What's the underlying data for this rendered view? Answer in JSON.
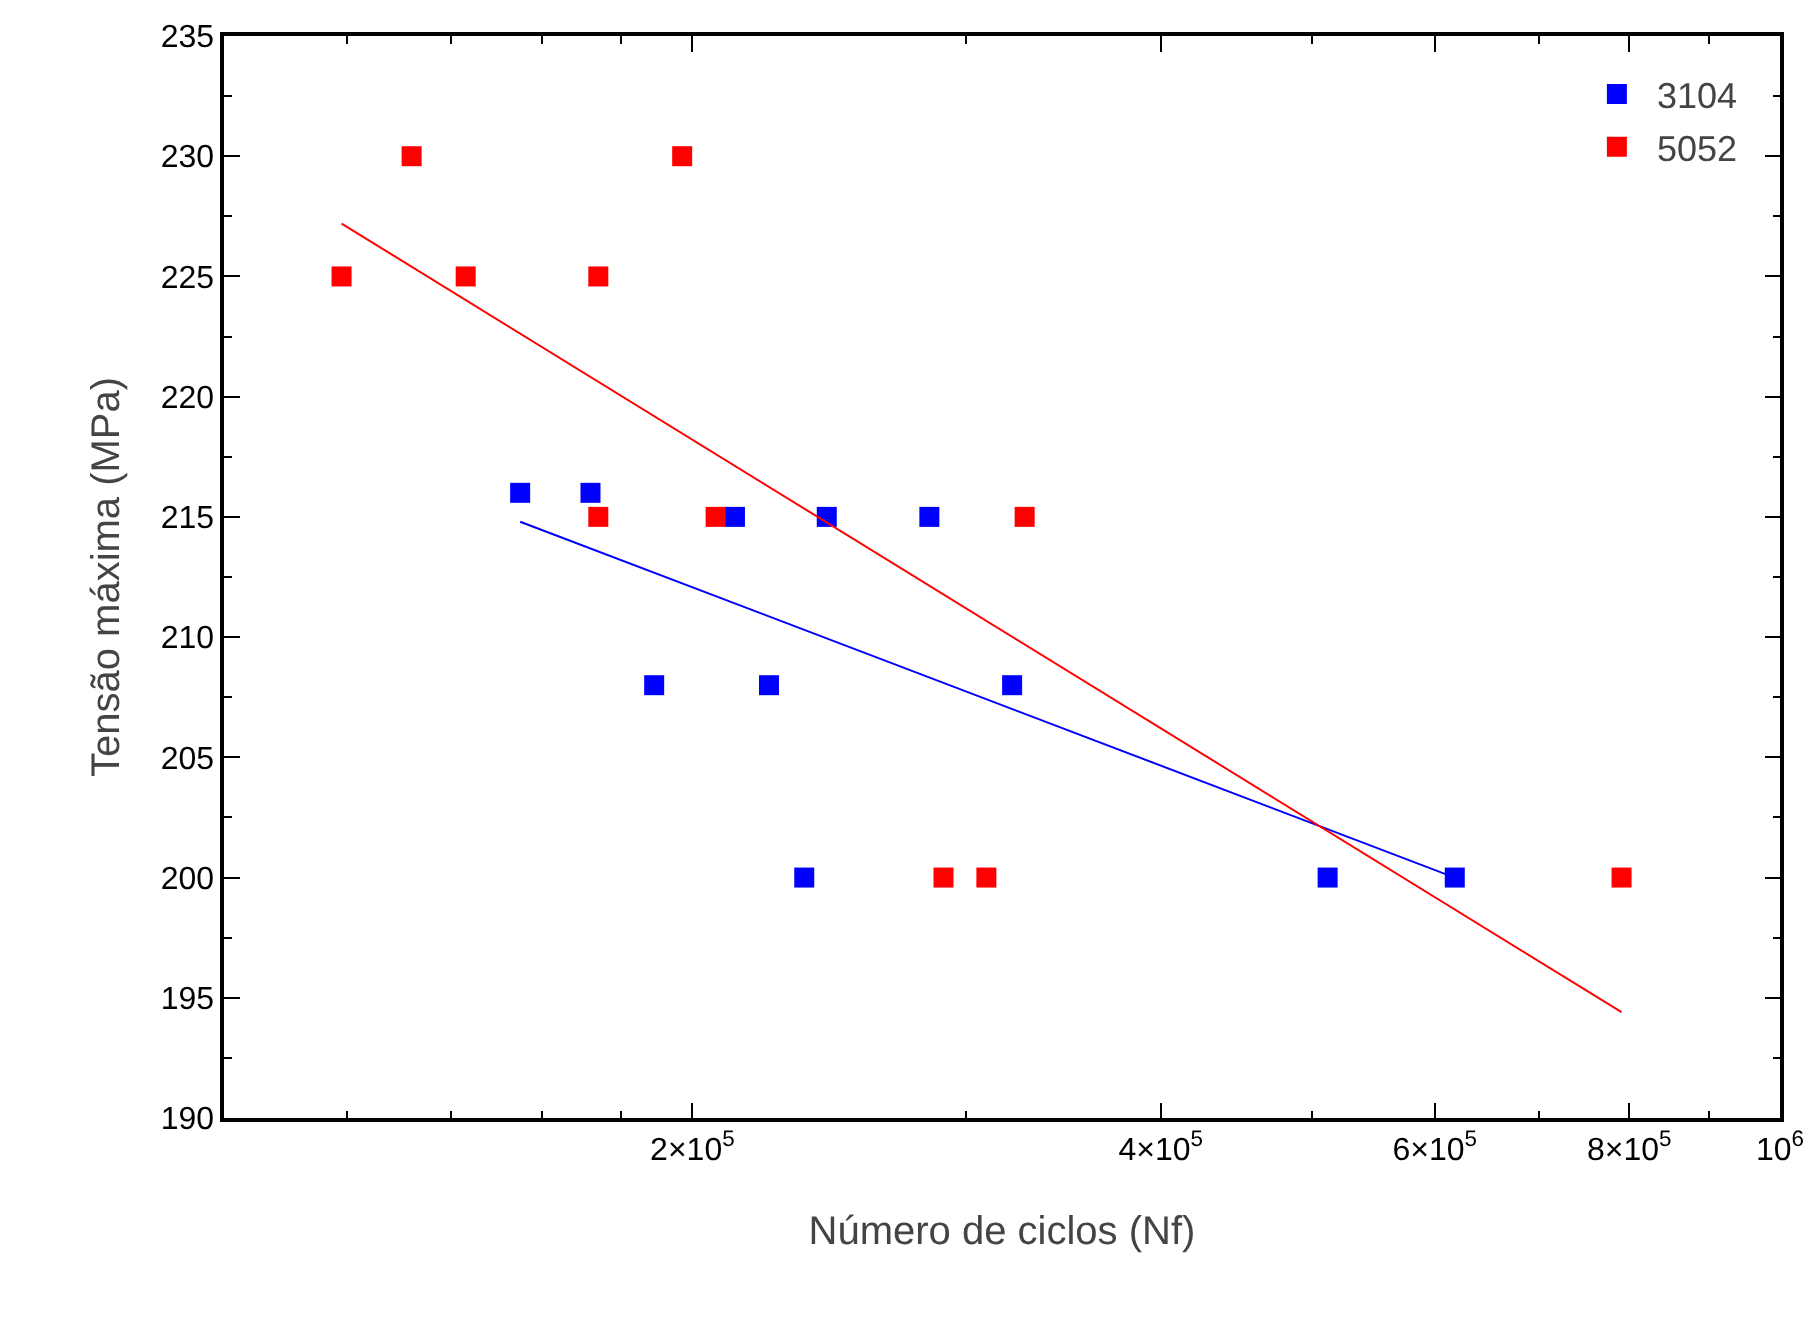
{
  "chart_data": {
    "type": "scatter",
    "xlabel": "Número de ciclos (Nf)",
    "ylabel": "Tensão máxima (MPa)",
    "log": "x",
    "xlim": [
      100000,
      1000000
    ],
    "xticks": [
      {
        "value": 200000,
        "label": "2×10$^{5}$"
      },
      {
        "value": 400000,
        "label": "4×10$^{5}$"
      },
      {
        "value": 600000,
        "label": "6×10$^{5}$"
      },
      {
        "value": 800000,
        "label": "8×10$^{5}$"
      },
      {
        "value": 1000000,
        "label": "10$^{6}$"
      }
    ],
    "ylim": [
      190,
      235
    ],
    "yticks": [
      190,
      195,
      200,
      205,
      210,
      215,
      220,
      225,
      230,
      235
    ],
    "grid": false,
    "legend": "top right",
    "marker": "square",
    "series": [
      {
        "name": "3104",
        "color": "#0000ff",
        "x": [
          155000,
          172000,
          189000,
          213000,
          224000,
          236000,
          244000,
          284000,
          321000,
          512000,
          618000
        ],
        "values": [
          216,
          216,
          208,
          215,
          208,
          200,
          215,
          215,
          208,
          200,
          200
        ]
      },
      {
        "name": "5052",
        "color": "#ff0000",
        "x": [
          119000,
          132000,
          143000,
          174000,
          174000,
          197000,
          207000,
          290000,
          309000,
          327000,
          791000
        ],
        "values": [
          225,
          230,
          225,
          215,
          225,
          230,
          215,
          200,
          200,
          215,
          200
        ]
      },
      {
        "type": "line",
        "marker": "none",
        "color": "#0000ff",
        "x": [
          155000,
          618000
        ],
        "values": [
          214.8,
          200.0
        ]
      },
      {
        "type": "line",
        "marker": "none",
        "color": "#ff0000",
        "x": [
          119000,
          791000
        ],
        "values": [
          227.2,
          194.4
        ]
      }
    ]
  }
}
